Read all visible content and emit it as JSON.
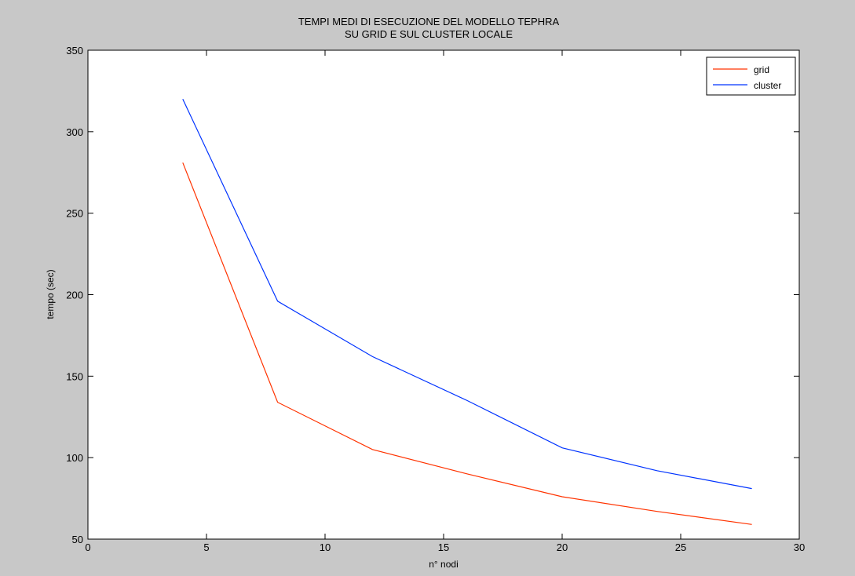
{
  "chart_data": {
    "type": "line",
    "title": [
      "TEMPI MEDI DI ESECUZIONE DEL MODELLO TEPHRA",
      "SU GRID E SUL CLUSTER LOCALE"
    ],
    "xlabel": "n° nodi",
    "ylabel": "tempo (sec)",
    "xlim": [
      0,
      30
    ],
    "ylim": [
      50,
      350
    ],
    "xticks": [
      0,
      5,
      10,
      15,
      20,
      25,
      30
    ],
    "yticks": [
      50,
      100,
      150,
      200,
      250,
      300,
      350
    ],
    "grid": false,
    "legend_position": "top-right",
    "x": [
      4,
      8,
      12,
      16,
      20,
      24,
      28
    ],
    "series": [
      {
        "name": "grid",
        "color": "#ff3300",
        "values": [
          281,
          134,
          105,
          90,
          76,
          67,
          59
        ]
      },
      {
        "name": "cluster",
        "color": "#0033ff",
        "values": [
          320,
          196,
          162,
          135,
          106,
          92,
          81
        ]
      }
    ]
  }
}
